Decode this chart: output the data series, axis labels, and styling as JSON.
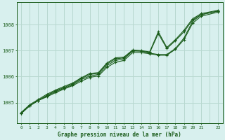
{
  "xlabel": "Graphe pression niveau de la mer (hPa)",
  "background_color": "#d8f0ee",
  "grid_color": "#b8d8d0",
  "line_color": "#1a5c1a",
  "xlim": [
    -0.5,
    23.5
  ],
  "ylim": [
    1004.2,
    1008.85
  ],
  "yticks": [
    1005,
    1006,
    1007,
    1008
  ],
  "xtick_vals": [
    0,
    1,
    2,
    3,
    4,
    5,
    6,
    7,
    8,
    9,
    10,
    11,
    12,
    13,
    14,
    15,
    16,
    17,
    18,
    19,
    20,
    21,
    23
  ],
  "series1": [
    [
      0,
      1004.58
    ],
    [
      1,
      1004.88
    ],
    [
      2,
      1005.08
    ],
    [
      3,
      1005.22
    ],
    [
      4,
      1005.38
    ],
    [
      5,
      1005.52
    ],
    [
      6,
      1005.65
    ],
    [
      7,
      1005.82
    ],
    [
      8,
      1005.97
    ],
    [
      9,
      1006.02
    ],
    [
      10,
      1006.35
    ],
    [
      11,
      1006.55
    ],
    [
      12,
      1006.62
    ],
    [
      13,
      1006.92
    ],
    [
      14,
      1006.92
    ],
    [
      15,
      1006.88
    ],
    [
      16,
      1006.82
    ],
    [
      17,
      1006.82
    ],
    [
      18,
      1007.05
    ],
    [
      19,
      1007.42
    ],
    [
      20,
      1008.05
    ],
    [
      21,
      1008.32
    ],
    [
      23,
      1008.48
    ]
  ],
  "series2": [
    [
      0,
      1004.58
    ],
    [
      1,
      1004.88
    ],
    [
      2,
      1005.08
    ],
    [
      3,
      1005.25
    ],
    [
      4,
      1005.42
    ],
    [
      5,
      1005.55
    ],
    [
      6,
      1005.68
    ],
    [
      7,
      1005.88
    ],
    [
      8,
      1006.02
    ],
    [
      9,
      1006.08
    ],
    [
      10,
      1006.42
    ],
    [
      11,
      1006.62
    ],
    [
      12,
      1006.68
    ],
    [
      13,
      1006.98
    ],
    [
      14,
      1006.98
    ],
    [
      15,
      1006.9
    ],
    [
      16,
      1006.85
    ],
    [
      17,
      1006.85
    ],
    [
      18,
      1007.08
    ],
    [
      19,
      1007.48
    ],
    [
      20,
      1008.12
    ],
    [
      21,
      1008.38
    ],
    [
      23,
      1008.52
    ]
  ],
  "series3": [
    [
      0,
      1004.58
    ],
    [
      1,
      1004.88
    ],
    [
      2,
      1005.08
    ],
    [
      3,
      1005.28
    ],
    [
      4,
      1005.45
    ],
    [
      5,
      1005.58
    ],
    [
      6,
      1005.72
    ],
    [
      7,
      1005.92
    ],
    [
      8,
      1006.08
    ],
    [
      9,
      1006.12
    ],
    [
      10,
      1006.48
    ],
    [
      11,
      1006.68
    ],
    [
      12,
      1006.72
    ],
    [
      13,
      1007.0
    ],
    [
      14,
      1006.98
    ],
    [
      15,
      1006.92
    ],
    [
      16,
      1007.65
    ],
    [
      17,
      1007.08
    ],
    [
      18,
      1007.38
    ],
    [
      19,
      1007.72
    ],
    [
      20,
      1008.18
    ],
    [
      21,
      1008.38
    ],
    [
      23,
      1008.52
    ]
  ],
  "series4": [
    [
      0,
      1004.62
    ],
    [
      1,
      1004.92
    ],
    [
      2,
      1005.12
    ],
    [
      3,
      1005.32
    ],
    [
      4,
      1005.48
    ],
    [
      5,
      1005.62
    ],
    [
      6,
      1005.75
    ],
    [
      7,
      1005.95
    ],
    [
      8,
      1006.12
    ],
    [
      9,
      1006.15
    ],
    [
      10,
      1006.52
    ],
    [
      11,
      1006.72
    ],
    [
      12,
      1006.75
    ],
    [
      13,
      1007.02
    ],
    [
      14,
      1007.0
    ],
    [
      15,
      1006.95
    ],
    [
      16,
      1007.72
    ],
    [
      17,
      1007.12
    ],
    [
      18,
      1007.42
    ],
    [
      19,
      1007.78
    ],
    [
      20,
      1008.22
    ],
    [
      21,
      1008.42
    ],
    [
      23,
      1008.55
    ]
  ]
}
